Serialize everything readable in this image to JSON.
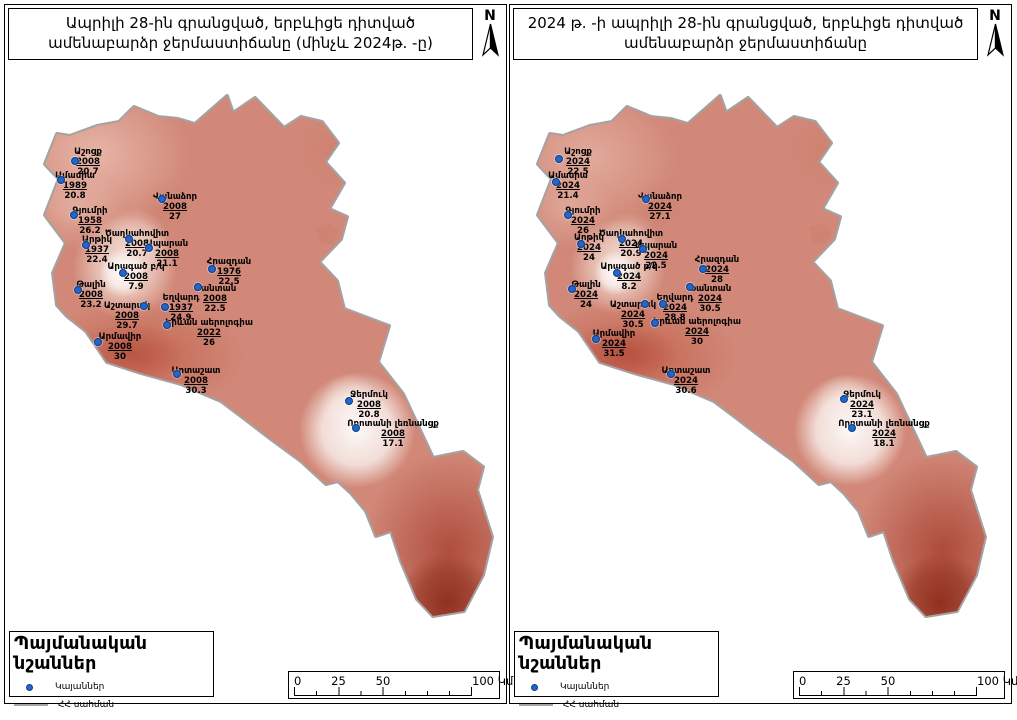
{
  "panels": [
    {
      "title": "Ապրիլի 28-ին գրանցված, երբևիցե դիտված ամենաբարձր ջերմաստիճանը (մինչև 2024թ. -ը)",
      "stations": [
        {
          "name": "Աշոցք",
          "year": "2008",
          "value": "20.7",
          "dot": [
            70,
            156
          ],
          "label": [
            83,
            142
          ]
        },
        {
          "name": "Ամասիա",
          "year": "1989",
          "value": "20.8",
          "dot": [
            56,
            175
          ],
          "label": [
            70,
            166
          ]
        },
        {
          "name": "Վանաձոր",
          "year": "2008",
          "value": "27",
          "dot": [
            157,
            194
          ],
          "label": [
            170,
            187
          ]
        },
        {
          "name": "Գյումրի",
          "year": "1958",
          "value": "26.2",
          "dot": [
            69,
            210
          ],
          "label": [
            85,
            201
          ]
        },
        {
          "name": "Արթիկ",
          "year": "1937",
          "value": "22.4",
          "dot": [
            81,
            240
          ],
          "label": [
            92,
            230
          ]
        },
        {
          "name": "Ծաղկահովիտ",
          "year": "2008",
          "value": "20.7",
          "dot": [
            124,
            234
          ],
          "label": [
            132,
            224
          ]
        },
        {
          "name": "Ապարան",
          "year": "2008",
          "value": "21.1",
          "dot": [
            144,
            243
          ],
          "label": [
            162,
            234
          ]
        },
        {
          "name": "Հրազդան",
          "year": "1976",
          "value": "22.5",
          "dot": [
            207,
            264
          ],
          "label": [
            224,
            252
          ]
        },
        {
          "name": "Ֆանտան",
          "year": "2008",
          "value": "22.5",
          "dot": [
            193,
            282
          ],
          "label": [
            210,
            279
          ]
        },
        {
          "name": "Թալին",
          "year": "2008",
          "value": "23.2",
          "dot": [
            73,
            285
          ],
          "label": [
            86,
            275
          ]
        },
        {
          "name": "Արագած բ/կ",
          "year": "2008",
          "value": "7.9",
          "dot": [
            118,
            268
          ],
          "label": [
            131,
            257
          ]
        },
        {
          "name": "Եղվարդ",
          "year": "1937",
          "value": "24.9",
          "dot": [
            160,
            302
          ],
          "label": [
            176,
            288
          ]
        },
        {
          "name": "Աշտարակ",
          "year": "2008",
          "value": "29.7",
          "dot": [
            139,
            301
          ],
          "label": [
            122,
            296
          ]
        },
        {
          "name": "Երևան աերոլոգիա",
          "year": "2022",
          "value": "26",
          "dot": [
            162,
            320
          ],
          "label": [
            204,
            313
          ]
        },
        {
          "name": "Արմավիր",
          "year": "2008",
          "value": "30",
          "dot": [
            93,
            337
          ],
          "label": [
            115,
            327
          ]
        },
        {
          "name": "Արտաշատ",
          "year": "2008",
          "value": "30.3",
          "dot": [
            172,
            369
          ],
          "label": [
            191,
            361
          ]
        },
        {
          "name": "Ջերմուկ",
          "year": "2008",
          "value": "20.8",
          "dot": [
            344,
            396
          ],
          "label": [
            364,
            385
          ]
        },
        {
          "name": "Որոտանի լեռնանցք",
          "year": "2008",
          "value": "17.1",
          "dot": [
            351,
            423
          ],
          "label": [
            388,
            414
          ]
        }
      ]
    },
    {
      "title": "2024 թ.  -ի ապրիլի 28-ին գրանցված, երբևիցե դիտված ամենաբարձր ջերմաստիճանը",
      "stations": [
        {
          "name": "Աշոցք",
          "year": "2024",
          "value": "22.5",
          "dot": [
            49,
            154
          ],
          "label": [
            68,
            142
          ]
        },
        {
          "name": "Ամասիա",
          "year": "2024",
          "value": "21.4",
          "dot": [
            46,
            177
          ],
          "label": [
            58,
            166
          ]
        },
        {
          "name": "Վանաձոր",
          "year": "2024",
          "value": "27.1",
          "dot": [
            136,
            194
          ],
          "label": [
            150,
            187
          ]
        },
        {
          "name": "Գյումրի",
          "year": "2024",
          "value": "26",
          "dot": [
            58,
            210
          ],
          "label": [
            73,
            201
          ]
        },
        {
          "name": "Արթիկ",
          "year": "2024",
          "value": "24",
          "dot": [
            71,
            239
          ],
          "label": [
            79,
            228
          ]
        },
        {
          "name": "Ծաղկահովիտ",
          "year": "2024",
          "value": "20.9",
          "dot": [
            112,
            234
          ],
          "label": [
            121,
            224
          ]
        },
        {
          "name": "Ապարան",
          "year": "2024",
          "value": "22.5",
          "dot": [
            133,
            244
          ],
          "label": [
            146,
            236
          ]
        },
        {
          "name": "Հրազդան",
          "year": "2024",
          "value": "28",
          "dot": [
            193,
            264
          ],
          "label": [
            207,
            250
          ]
        },
        {
          "name": "Ֆանտան",
          "year": "2024",
          "value": "30.5",
          "dot": [
            180,
            282
          ],
          "label": [
            200,
            279
          ]
        },
        {
          "name": "Թալին",
          "year": "2024",
          "value": "24",
          "dot": [
            62,
            284
          ],
          "label": [
            76,
            275
          ]
        },
        {
          "name": "Արագած բ/կ",
          "year": "2024",
          "value": "8.2",
          "dot": [
            107,
            268
          ],
          "label": [
            119,
            257
          ]
        },
        {
          "name": "Եղվարդ",
          "year": "2024",
          "value": "28.8",
          "dot": [
            153,
            299
          ],
          "label": [
            165,
            288
          ]
        },
        {
          "name": "Աշտարակ",
          "year": "2024",
          "value": "30.5",
          "dot": [
            135,
            299
          ],
          "label": [
            123,
            295
          ]
        },
        {
          "name": "Երևան աերոլոգիա",
          "year": "2024",
          "value": "30",
          "dot": [
            145,
            318
          ],
          "label": [
            187,
            312
          ]
        },
        {
          "name": "Արմավիր",
          "year": "2024",
          "value": "31.5",
          "dot": [
            86,
            334
          ],
          "label": [
            104,
            324
          ]
        },
        {
          "name": "Արտաշատ",
          "year": "2024",
          "value": "30.6",
          "dot": [
            161,
            369
          ],
          "label": [
            176,
            361
          ]
        },
        {
          "name": "Ջերմուկ",
          "year": "2024",
          "value": "23.1",
          "dot": [
            334,
            394
          ],
          "label": [
            352,
            385
          ]
        },
        {
          "name": "Որոտանի լեռնանցք",
          "year": "2024",
          "value": "18.1",
          "dot": [
            342,
            423
          ],
          "label": [
            374,
            414
          ]
        }
      ]
    }
  ],
  "north_label": "N",
  "legend": {
    "title": "Պայմանական նշաններ",
    "stations_label": "Կայաններ",
    "border_label": "ՀՀ սահման"
  },
  "scalebar": {
    "labels": [
      "0",
      "25",
      "50",
      "100 Կմ"
    ]
  },
  "colors": {
    "surface_base": "#d18878",
    "surface_low": "#fdf8f6",
    "surface_high": "#8e2d1c",
    "valley_dark": "#c05a44",
    "station_dot": "#2265cc",
    "country_border": "#a3a3a3"
  }
}
